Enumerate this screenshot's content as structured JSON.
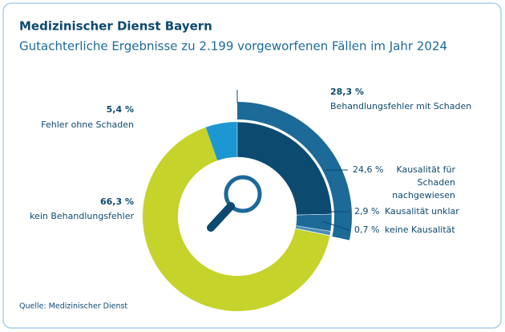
{
  "chart_data": {
    "type": "pie",
    "title": "Medizinischer Dienst Bayern",
    "subtitle": "Gutachterliche Ergebnisse zu 2.199 vorgeworfenen Fällen im Jahr 2024",
    "source": "Quelle: Medizinischer Dienst",
    "categories": [
      "Behandlungsfehler mit Schaden",
      "kein Behandlungsfehler",
      "Fehler ohne Schaden"
    ],
    "values": [
      28.3,
      66.3,
      5.4
    ],
    "value_labels": [
      "28,3 %",
      "66,3 %",
      "5,4 %"
    ],
    "colors": [
      "#1b6a98",
      "#c5d32a",
      "#1d97d2"
    ],
    "breakdown": {
      "categories": [
        "Kausalität für Schaden nachgewiesen",
        "Kausalität unklar",
        "keine Kausalität"
      ],
      "values": [
        24.6,
        2.9,
        0.7
      ],
      "value_labels": [
        "24,6 %",
        "2,9 %",
        "0,7 %"
      ],
      "colors": [
        "#0d4a70",
        "#1b6a98",
        "#4b8db8"
      ]
    }
  }
}
